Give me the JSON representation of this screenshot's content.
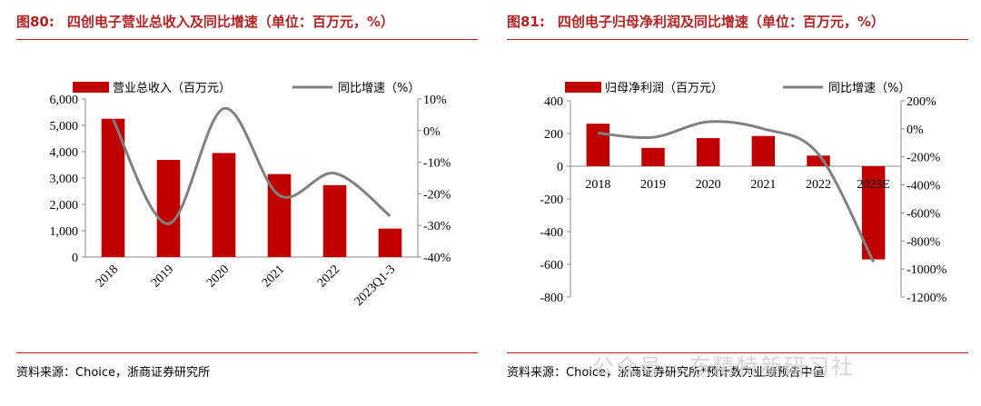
{
  "watermark": "公众号 · 东精特新研习社",
  "chart_data": [
    {
      "type": "bar",
      "figure_label": "图80:",
      "title": "四创电子营业总收入及同比增速（单位：百万元，%）",
      "categories": [
        "2018",
        "2019",
        "2020",
        "2021",
        "2022",
        "2023Q1-3"
      ],
      "series": [
        {
          "name": "营业总收入（百万元）",
          "kind": "bar",
          "axis": "left",
          "color": "#c00000",
          "values": [
            5250,
            3690,
            3950,
            3150,
            2730,
            1080
          ]
        },
        {
          "name": "同比增速（%）",
          "kind": "line",
          "axis": "right",
          "color": "#808080",
          "values": [
            3.5,
            -29.5,
            7.0,
            -20.5,
            -13.5,
            -27.0
          ]
        }
      ],
      "ylim_left": [
        0,
        6000
      ],
      "yticks_left": [
        "0",
        "1,000",
        "2,000",
        "3,000",
        "4,000",
        "5,000",
        "6,000"
      ],
      "ylim_right": [
        -40,
        10
      ],
      "yticks_right": [
        "-40%",
        "-30%",
        "-20%",
        "-10%",
        "0%",
        "10%"
      ],
      "xlabel_rotation": "rotated-45",
      "source": "资料来源：Choice，浙商证券研究所"
    },
    {
      "type": "bar",
      "figure_label": "图81:",
      "title": "四创电子归母净利润及同比增速（单位：百万元，%）",
      "categories": [
        "2018",
        "2019",
        "2020",
        "2021",
        "2022",
        "2023E"
      ],
      "series": [
        {
          "name": "归母净利润（百万元）",
          "kind": "bar",
          "axis": "left",
          "color": "#c00000",
          "values": [
            260,
            112,
            172,
            185,
            65,
            -570
          ]
        },
        {
          "name": "同比增速（%）",
          "kind": "line",
          "axis": "right",
          "color": "#808080",
          "values": [
            -30,
            -60,
            50,
            0,
            -180,
            -950
          ]
        }
      ],
      "ylim_left": [
        -800,
        400
      ],
      "yticks_left": [
        "-800",
        "-600",
        "-400",
        "-200",
        "0",
        "200",
        "400"
      ],
      "ylim_right": [
        -1200,
        200
      ],
      "yticks_right": [
        "-1200%",
        "-1000%",
        "-800%",
        "-600%",
        "-400%",
        "-200%",
        "0%",
        "200%"
      ],
      "xlabel_position": "at-zero-line",
      "source": "资料来源：Choice，浙商证券研究所*预计数为业绩预告中值"
    }
  ]
}
